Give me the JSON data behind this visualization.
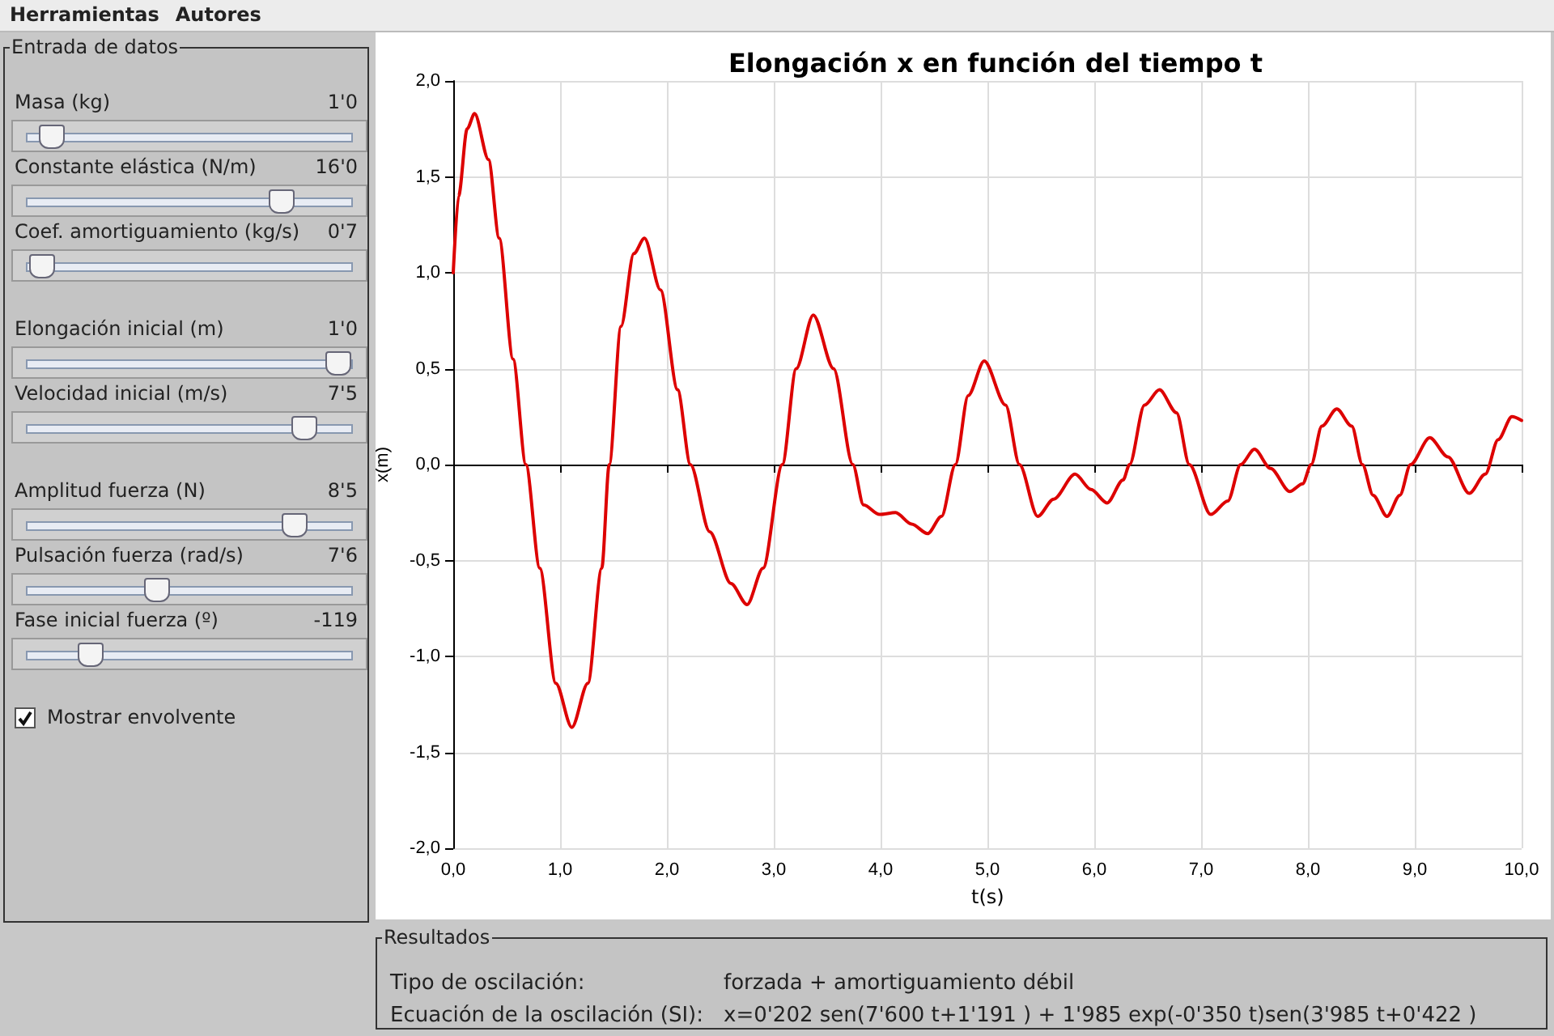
{
  "chart_data": [
    {
      "type": "other",
      "annotations": [
        "Herramientas",
        "Autores"
      ]
    },
    {
      "type": "other",
      "title": "Entrada de datos",
      "annotations": [
        "Masa (kg)",
        "1'0",
        "Constante elástica (N/m)",
        "16'0",
        "Coef. amortiguamiento (kg/s)",
        "0'7",
        "Elongación inicial (m)",
        "1'0",
        "Velocidad inicial (m/s)",
        "7'5",
        "Amplitud fuerza (N)",
        "8'5",
        "Pulsación fuerza (rad/s)",
        "7'6",
        "Fase inicial fuerza (º)",
        "-119",
        "Mostrar envolvente"
      ]
    },
    {
      "type": "line",
      "title": "Elongación x en función del tiempo t",
      "xlabel": "t(s)",
      "ylabel": "x(m)",
      "color": "#dd0000",
      "marker": "none",
      "grid": true,
      "xlim": [
        0,
        10
      ],
      "ylim": [
        -2,
        2
      ],
      "xticks": [
        {
          "value": 0,
          "label": "0,0"
        },
        {
          "value": 1,
          "label": "1,0"
        },
        {
          "value": 2,
          "label": "2,0"
        },
        {
          "value": 3,
          "label": "3,0"
        },
        {
          "value": 4,
          "label": "4,0"
        },
        {
          "value": 5,
          "label": "5,0"
        },
        {
          "value": 6,
          "label": "6,0"
        },
        {
          "value": 7,
          "label": "7,0"
        },
        {
          "value": 8,
          "label": "8,0"
        },
        {
          "value": 9,
          "label": "9,0"
        },
        {
          "value": 10,
          "label": "10,0"
        }
      ],
      "yticks": [
        {
          "value": -2,
          "label": "-2,0"
        },
        {
          "value": -1.5,
          "label": "-1,5"
        },
        {
          "value": -1,
          "label": "-1,0"
        },
        {
          "value": -0.5,
          "label": "-0,5"
        },
        {
          "value": 0,
          "label": "0,0"
        },
        {
          "value": 0.5,
          "label": "0,5"
        },
        {
          "value": 1,
          "label": "1,0"
        },
        {
          "value": 1.5,
          "label": "1,5"
        },
        {
          "value": 2,
          "label": "2,0"
        }
      ],
      "x": [
        0,
        0.05,
        0.13,
        0.2,
        0.33,
        0.43,
        0.56,
        0.68,
        0.81,
        0.96,
        1.11,
        1.26,
        1.39,
        1.46,
        1.57,
        1.69,
        1.79,
        1.94,
        2.1,
        2.22,
        2.4,
        2.6,
        2.75,
        2.9,
        3.08,
        3.21,
        3.37,
        3.56,
        3.74,
        3.84,
        3.99,
        4.14,
        4.29,
        4.44,
        4.57,
        4.7,
        4.82,
        4.97,
        5.17,
        5.3,
        5.47,
        5.62,
        5.82,
        5.97,
        6.12,
        6.27,
        6.33,
        6.47,
        6.61,
        6.77,
        6.89,
        7.09,
        7.25,
        7.37,
        7.5,
        7.65,
        7.83,
        7.95,
        8.03,
        8.13,
        8.27,
        8.41,
        8.51,
        8.61,
        8.74,
        8.86,
        8.96,
        9.14,
        9.31,
        9.51,
        9.66,
        9.78,
        9.91,
        10
      ],
      "values": [
        1.0,
        1.4,
        1.75,
        1.83,
        1.59,
        1.18,
        0.55,
        0,
        -0.54,
        -1.14,
        -1.37,
        -1.14,
        -0.54,
        0,
        0.72,
        1.1,
        1.18,
        0.91,
        0.39,
        0,
        -0.35,
        -0.62,
        -0.73,
        -0.54,
        0,
        0.5,
        0.78,
        0.5,
        0,
        -0.21,
        -0.26,
        -0.25,
        -0.31,
        -0.36,
        -0.27,
        0,
        0.36,
        0.54,
        0.31,
        0,
        -0.27,
        -0.18,
        -0.05,
        -0.13,
        -0.2,
        -0.08,
        0,
        0.31,
        0.39,
        0.27,
        0,
        -0.26,
        -0.19,
        0,
        0.08,
        -0.02,
        -0.14,
        -0.1,
        0,
        0.2,
        0.29,
        0.2,
        0,
        -0.16,
        -0.27,
        -0.16,
        0,
        0.14,
        0.04,
        -0.15,
        -0.05,
        0.13,
        0.25,
        0.23
      ]
    },
    {
      "type": "other",
      "title": "Resultados",
      "annotations": [
        "Tipo de oscilación:",
        "forzada + amortiguamiento débil",
        "Ecuación de la oscilación (SI):",
        "x=0'202 sen(7'600 t+1'191 ) + 1'985 exp(-0'350 t)sen(3'985 t+0'422 )"
      ]
    }
  ]
}
